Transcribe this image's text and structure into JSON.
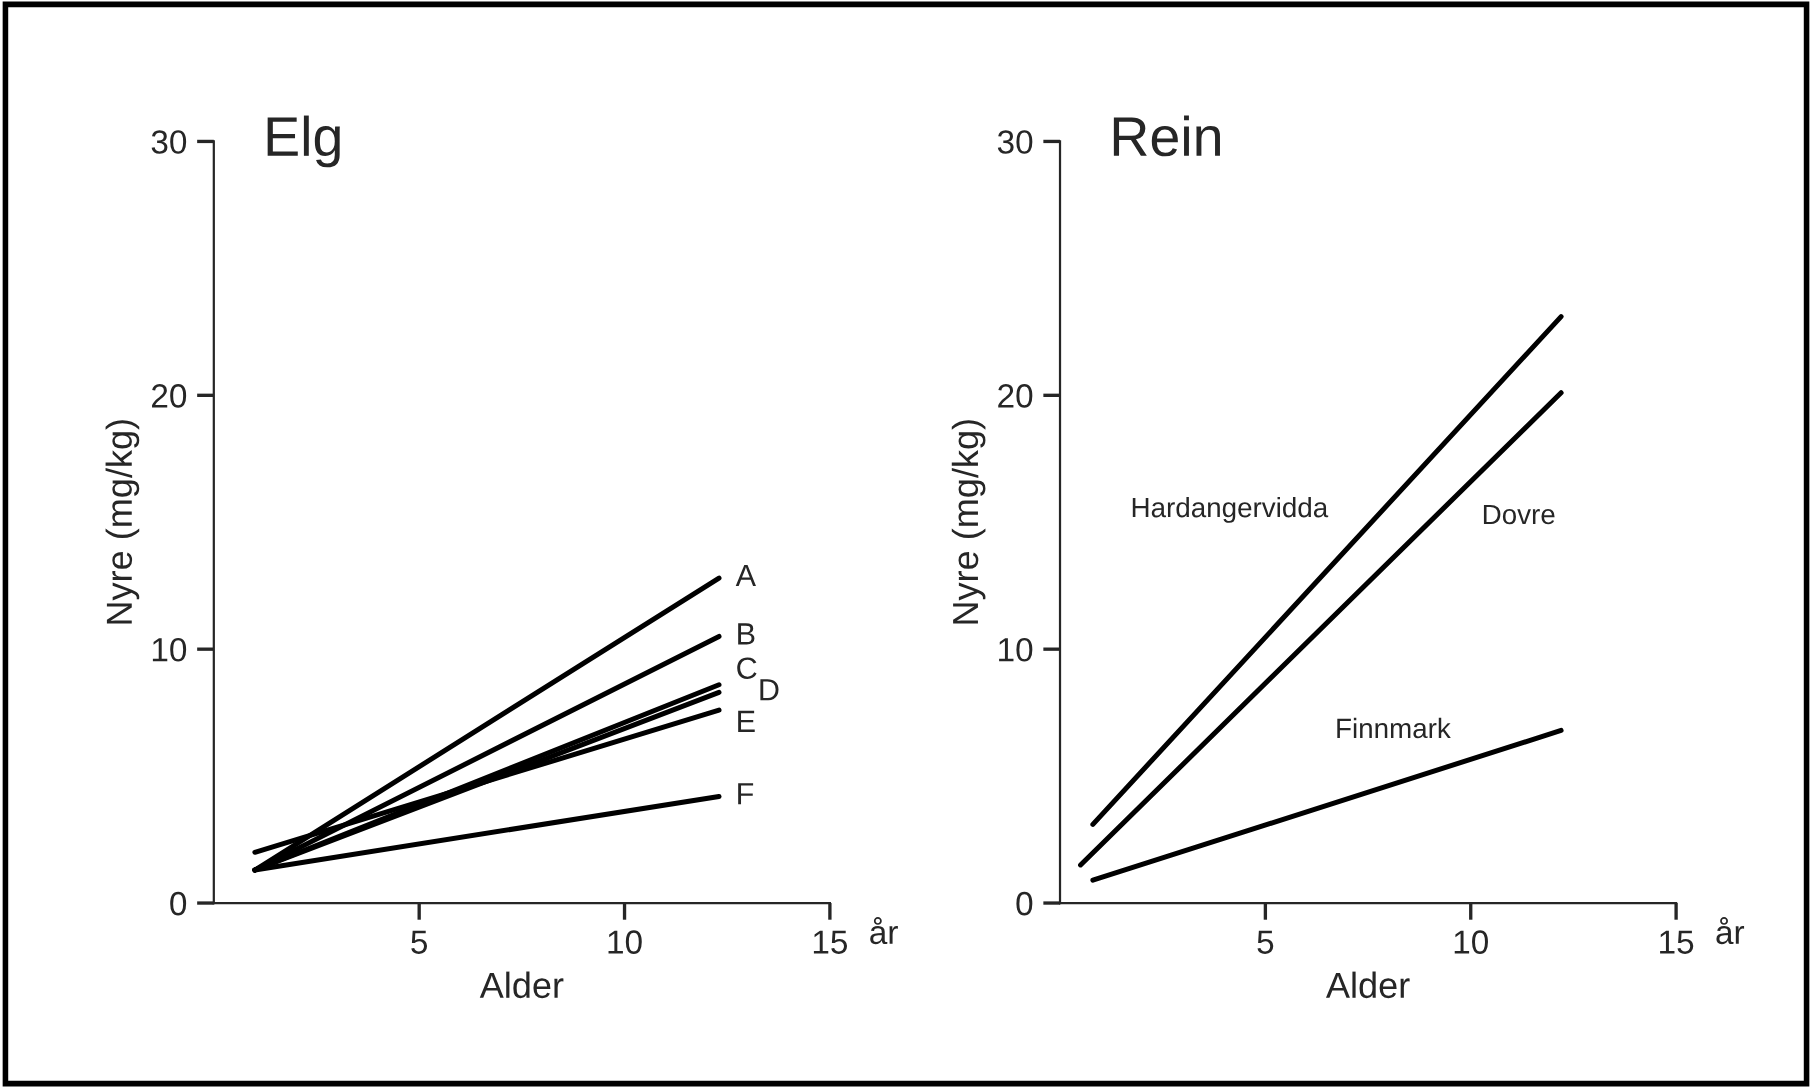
{
  "chart_data": [
    {
      "type": "line",
      "title": "Elg",
      "xlabel": "Alder",
      "ylabel": "Nyre (mg/kg)",
      "annotations": [
        "år"
      ],
      "xlim": [
        0,
        15
      ],
      "ylim": [
        0,
        30
      ],
      "xticks": [
        5,
        10,
        15
      ],
      "yticks": [
        0,
        10,
        20,
        30
      ],
      "grid": false,
      "legend": false,
      "marker": "none",
      "line_style": "solid",
      "series": [
        {
          "name": "A",
          "color": "#000000",
          "x": [
            1,
            12.3
          ],
          "values": [
            1.3,
            12.8
          ]
        },
        {
          "name": "B",
          "color": "#000000",
          "x": [
            1,
            12.3
          ],
          "values": [
            1.3,
            10.5
          ]
        },
        {
          "name": "C",
          "color": "#000000",
          "x": [
            1,
            12.3
          ],
          "values": [
            1.3,
            8.6
          ]
        },
        {
          "name": "D",
          "color": "#000000",
          "x": [
            1,
            12.3
          ],
          "values": [
            1.3,
            8.3
          ]
        },
        {
          "name": "E",
          "color": "#000000",
          "x": [
            1,
            12.3
          ],
          "values": [
            2.0,
            7.6
          ]
        },
        {
          "name": "F",
          "color": "#000000",
          "x": [
            1,
            12.3
          ],
          "values": [
            1.3,
            4.2
          ]
        }
      ]
    },
    {
      "type": "line",
      "title": "Rein",
      "xlabel": "Alder",
      "ylabel": "Nyre (mg/kg)",
      "annotations": [
        "år"
      ],
      "xlim": [
        0,
        15
      ],
      "ylim": [
        0,
        30
      ],
      "xticks": [
        5,
        10,
        15
      ],
      "yticks": [
        0,
        10,
        20,
        30
      ],
      "grid": false,
      "legend": false,
      "marker": "none",
      "line_style": "solid",
      "series": [
        {
          "name": "Hardangervidda",
          "color": "#000000",
          "x": [
            0.8,
            12.2
          ],
          "values": [
            3.1,
            23.1
          ]
        },
        {
          "name": "Dovre",
          "color": "#000000",
          "x": [
            0.5,
            12.2
          ],
          "values": [
            1.5,
            20.1
          ]
        },
        {
          "name": "Finnmark",
          "color": "#000000",
          "x": [
            0.8,
            12.2
          ],
          "values": [
            0.9,
            6.8
          ]
        }
      ]
    }
  ]
}
